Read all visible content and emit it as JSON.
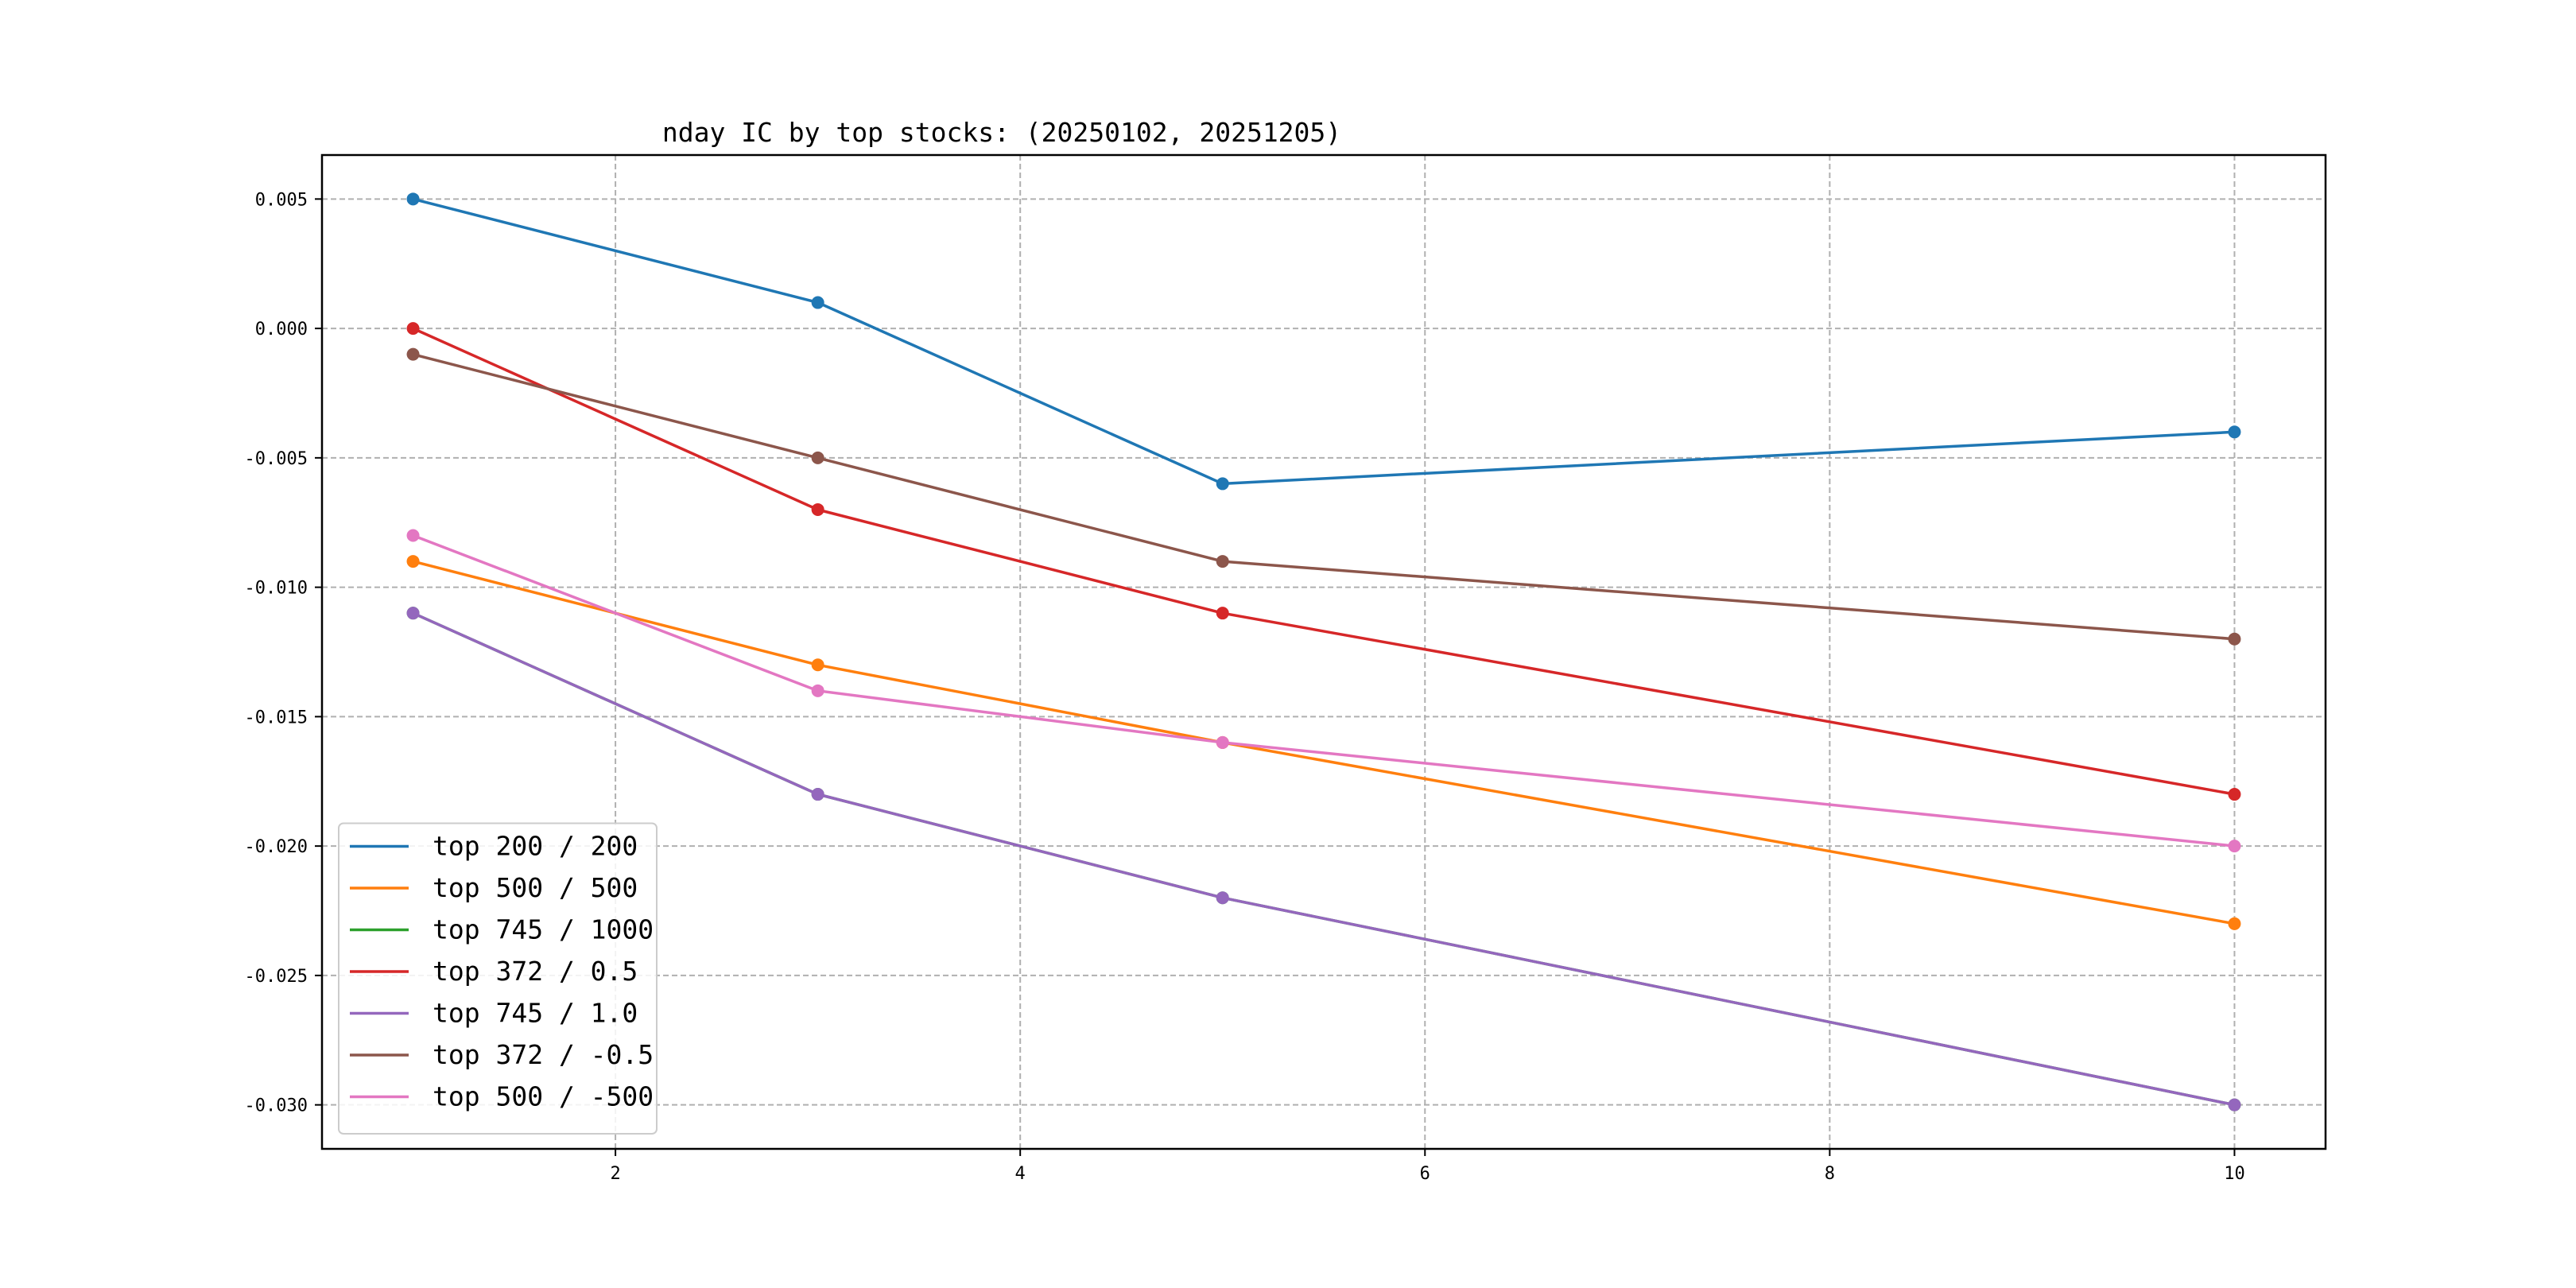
{
  "chart_data": {
    "type": "line",
    "title": "nday IC by top stocks: (20250102, 20251205)",
    "xlabel": "",
    "ylabel": "",
    "x": [
      1,
      3,
      5,
      10
    ],
    "xlim": [
      0.55,
      10.45
    ],
    "ylim": [
      -0.0317,
      0.0067
    ],
    "xticks": [
      2,
      4,
      6,
      8,
      10
    ],
    "yticks": [
      0.005,
      0.0,
      -0.005,
      -0.01,
      -0.015,
      -0.02,
      -0.025,
      -0.03
    ],
    "ytick_labels": [
      "0.005",
      "0.000",
      "-0.005",
      "-0.010",
      "-0.015",
      "-0.020",
      "-0.025",
      "-0.030"
    ],
    "grid": true,
    "legend_position": "bottom-left",
    "series": [
      {
        "name": "top 200 / 200",
        "color": "#1f77b4",
        "values": [
          0.005,
          0.001,
          -0.006,
          -0.004
        ]
      },
      {
        "name": "top 500 / 500",
        "color": "#ff7f0e",
        "values": [
          -0.009,
          -0.013,
          -0.016,
          -0.023
        ]
      },
      {
        "name": "top 745 / 1000",
        "color": "#2ca02c",
        "values": [
          -0.011,
          -0.018,
          -0.022,
          -0.03
        ]
      },
      {
        "name": "top 372 / 0.5",
        "color": "#d62728",
        "values": [
          0.0,
          -0.007,
          -0.011,
          -0.018
        ]
      },
      {
        "name": "top 745 / 1.0",
        "color": "#9467bd",
        "values": [
          -0.011,
          -0.018,
          -0.022,
          -0.03
        ]
      },
      {
        "name": "top 372 / -0.5",
        "color": "#8c564b",
        "values": [
          -0.001,
          -0.005,
          -0.009,
          -0.012
        ]
      },
      {
        "name": "top 500 / -500",
        "color": "#e377c2",
        "values": [
          -0.008,
          -0.014,
          -0.016,
          -0.02
        ]
      }
    ]
  }
}
